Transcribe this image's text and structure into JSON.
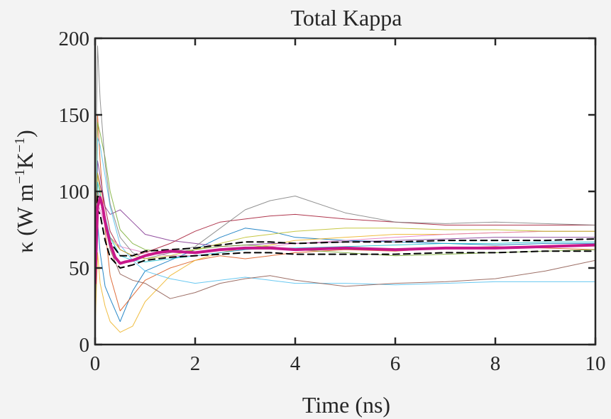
{
  "chart_data": {
    "type": "line",
    "title": "Total Kappa",
    "xlabel": "Time (ns)",
    "ylabel": {
      "prefix": "κ (W m",
      "sup1": "−1",
      "mid": "K",
      "sup2": "−1",
      "suffix": ")"
    },
    "xlim": [
      0,
      10
    ],
    "ylim": [
      0,
      200
    ],
    "xticks": [
      0,
      2,
      4,
      6,
      8,
      10
    ],
    "yticks": [
      0,
      50,
      100,
      150,
      200
    ],
    "grid": false,
    "legend": "none",
    "colors": {
      "background": "#f3f3f3",
      "plot_background": "#ffffff",
      "axis": "#262626",
      "mean": "#c8178a",
      "bound": "#000000"
    },
    "series": [
      {
        "role": "run",
        "color": "#0072bd",
        "x": [
          0,
          0.05,
          0.1,
          0.2,
          0.3,
          0.5,
          0.75,
          1,
          1.5,
          2,
          2.5,
          3,
          3.5,
          4,
          5,
          6,
          7,
          8,
          9,
          10
        ],
        "y": [
          20,
          80,
          60,
          38,
          30,
          15,
          35,
          48,
          55,
          62,
          70,
          76,
          74,
          70,
          68,
          67,
          66,
          65,
          66,
          66
        ]
      },
      {
        "role": "run",
        "color": "#d95319",
        "x": [
          0,
          0.05,
          0.1,
          0.2,
          0.3,
          0.5,
          0.75,
          1,
          1.5,
          2,
          2.5,
          3,
          3.5,
          4,
          5,
          6,
          7,
          8,
          9,
          10
        ],
        "y": [
          30,
          150,
          120,
          75,
          45,
          22,
          32,
          42,
          50,
          55,
          58,
          56,
          58,
          60,
          62,
          61,
          63,
          64,
          63,
          62
        ]
      },
      {
        "role": "run",
        "color": "#edb120",
        "x": [
          0,
          0.05,
          0.1,
          0.2,
          0.3,
          0.5,
          0.75,
          1,
          1.5,
          2,
          2.5,
          3,
          3.5,
          4,
          5,
          6,
          7,
          8,
          9,
          10
        ],
        "y": [
          10,
          60,
          40,
          25,
          15,
          8,
          12,
          28,
          45,
          55,
          60,
          63,
          65,
          68,
          70,
          72,
          72,
          73,
          74,
          74
        ]
      },
      {
        "role": "run",
        "color": "#7e2f8e",
        "x": [
          0,
          0.05,
          0.1,
          0.2,
          0.3,
          0.5,
          0.75,
          1,
          1.5,
          2,
          2.5,
          3,
          3.5,
          4,
          5,
          6,
          7,
          8,
          9,
          10
        ],
        "y": [
          40,
          120,
          110,
          90,
          85,
          88,
          80,
          72,
          68,
          66,
          64,
          65,
          66,
          66,
          67,
          68,
          69,
          70,
          70,
          70
        ]
      },
      {
        "role": "run",
        "color": "#77ac30",
        "x": [
          0,
          0.05,
          0.1,
          0.2,
          0.3,
          0.5,
          0.75,
          1,
          1.5,
          2,
          2.5,
          3,
          3.5,
          4,
          5,
          6,
          7,
          8,
          9,
          10
        ],
        "y": [
          60,
          145,
          138,
          122,
          100,
          75,
          66,
          62,
          60,
          62,
          64,
          65,
          64,
          62,
          60,
          58,
          59,
          60,
          61,
          62
        ]
      },
      {
        "role": "run",
        "color": "#4dbeee",
        "x": [
          0,
          0.05,
          0.1,
          0.2,
          0.3,
          0.5,
          0.75,
          1,
          1.5,
          2,
          2.5,
          3,
          3.5,
          4,
          5,
          6,
          7,
          8,
          9,
          10
        ],
        "y": [
          50,
          135,
          130,
          110,
          90,
          65,
          55,
          48,
          43,
          40,
          42,
          44,
          42,
          40,
          40,
          39,
          40,
          41,
          41,
          41
        ]
      },
      {
        "role": "run",
        "color": "#a2142f",
        "x": [
          0,
          0.05,
          0.1,
          0.2,
          0.3,
          0.5,
          0.75,
          1,
          1.5,
          2,
          2.5,
          3,
          3.5,
          4,
          5,
          6,
          7,
          8,
          9,
          10
        ],
        "y": [
          80,
          112,
          104,
          90,
          74,
          62,
          58,
          60,
          66,
          74,
          80,
          82,
          84,
          85,
          82,
          80,
          78,
          78,
          78,
          78
        ]
      },
      {
        "role": "run",
        "color": "#8c564b",
        "x": [
          0,
          0.05,
          0.1,
          0.2,
          0.3,
          0.5,
          0.75,
          1,
          1.5,
          2,
          2.5,
          3,
          3.5,
          4,
          5,
          6,
          7,
          8,
          9,
          10
        ],
        "y": [
          35,
          100,
          95,
          78,
          62,
          46,
          42,
          40,
          30,
          34,
          40,
          43,
          45,
          42,
          38,
          40,
          41,
          43,
          48,
          55
        ]
      },
      {
        "role": "run",
        "color": "#e377c2",
        "x": [
          0,
          0.05,
          0.1,
          0.2,
          0.3,
          0.5,
          0.75,
          1,
          1.5,
          2,
          2.5,
          3,
          3.5,
          4,
          5,
          6,
          7,
          8,
          9,
          10
        ],
        "y": [
          65,
          92,
          88,
          78,
          70,
          64,
          62,
          60,
          58,
          58,
          60,
          62,
          64,
          66,
          68,
          70,
          72,
          73,
          74,
          74
        ]
      },
      {
        "role": "run",
        "color": "#7f7f7f",
        "x": [
          0,
          0.05,
          0.1,
          0.2,
          0.3,
          0.5,
          0.75,
          1,
          1.5,
          2,
          2.5,
          3,
          3.5,
          4,
          5,
          6,
          7,
          8,
          9,
          10
        ],
        "y": [
          90,
          195,
          160,
          118,
          92,
          70,
          60,
          56,
          60,
          64,
          76,
          88,
          94,
          97,
          86,
          80,
          79,
          80,
          79,
          78
        ]
      },
      {
        "role": "run",
        "color": "#bcbd22",
        "x": [
          0,
          0.05,
          0.1,
          0.2,
          0.3,
          0.5,
          0.75,
          1,
          1.5,
          2,
          2.5,
          3,
          3.5,
          4,
          5,
          6,
          7,
          8,
          9,
          10
        ],
        "y": [
          55,
          112,
          100,
          82,
          70,
          62,
          58,
          56,
          58,
          62,
          66,
          70,
          72,
          74,
          76,
          76,
          75,
          75,
          74,
          74
        ]
      },
      {
        "role": "run",
        "color": "#17becf",
        "x": [
          0,
          0.05,
          0.1,
          0.2,
          0.3,
          0.5,
          0.75,
          1,
          1.5,
          2,
          2.5,
          3,
          3.5,
          4,
          5,
          6,
          7,
          8,
          9,
          10
        ],
        "y": [
          45,
          106,
          98,
          84,
          70,
          58,
          55,
          54,
          56,
          58,
          60,
          62,
          63,
          63,
          64,
          65,
          66,
          66,
          67,
          67
        ]
      },
      {
        "role": "bound",
        "color": "#000000",
        "x": [
          0,
          0.05,
          0.1,
          0.2,
          0.3,
          0.5,
          0.75,
          1,
          1.5,
          2,
          2.5,
          3,
          3.5,
          4,
          5,
          6,
          7,
          8,
          9,
          10
        ],
        "y": [
          58,
          98,
          95,
          80,
          67,
          58,
          58,
          61,
          62,
          63,
          65,
          67,
          67,
          66,
          67,
          67,
          68,
          68,
          68,
          69
        ]
      },
      {
        "role": "bound",
        "color": "#000000",
        "x": [
          0,
          0.05,
          0.1,
          0.2,
          0.3,
          0.5,
          0.75,
          1,
          1.5,
          2,
          2.5,
          3,
          3.5,
          4,
          5,
          6,
          7,
          8,
          9,
          10
        ],
        "y": [
          38,
          88,
          85,
          68,
          57,
          50,
          52,
          55,
          57,
          58,
          59,
          60,
          60,
          59,
          59,
          59,
          60,
          60,
          61,
          61
        ]
      },
      {
        "role": "mean",
        "color": "#c8178a",
        "x": [
          0,
          0.05,
          0.1,
          0.15,
          0.2,
          0.3,
          0.4,
          0.5,
          0.6,
          0.75,
          1,
          1.25,
          1.5,
          2,
          2.5,
          3,
          3.5,
          4,
          5,
          6,
          7,
          8,
          9,
          10
        ],
        "y": [
          40,
          90,
          96,
          90,
          80,
          66,
          57,
          53,
          54,
          55,
          58,
          60,
          61,
          60,
          62,
          63,
          63,
          62,
          63,
          62,
          63,
          63,
          64,
          65
        ]
      }
    ]
  }
}
